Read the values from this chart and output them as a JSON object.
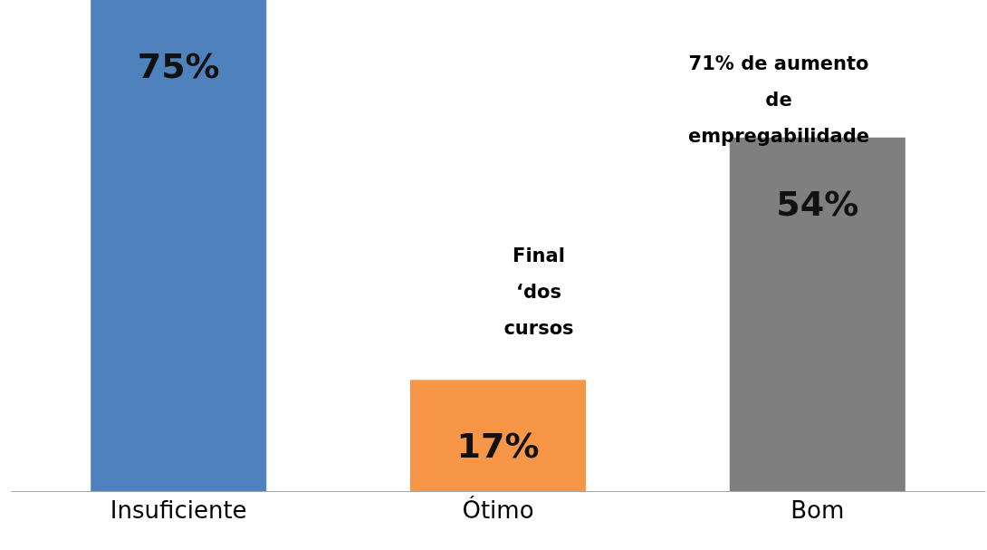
{
  "chart_data": {
    "type": "bar",
    "categories": [
      "Insuficiente",
      "Ótimo",
      "Bom"
    ],
    "values": [
      75,
      17,
      54
    ],
    "value_labels": [
      "75%",
      "17%",
      "54%"
    ],
    "colors": [
      "#4f81bd",
      "#f79646",
      "#7f7f7f"
    ],
    "annotations": [
      "Final\n‘dos\ncursos",
      "71% de aumento\nde\nempregabilidade"
    ]
  }
}
